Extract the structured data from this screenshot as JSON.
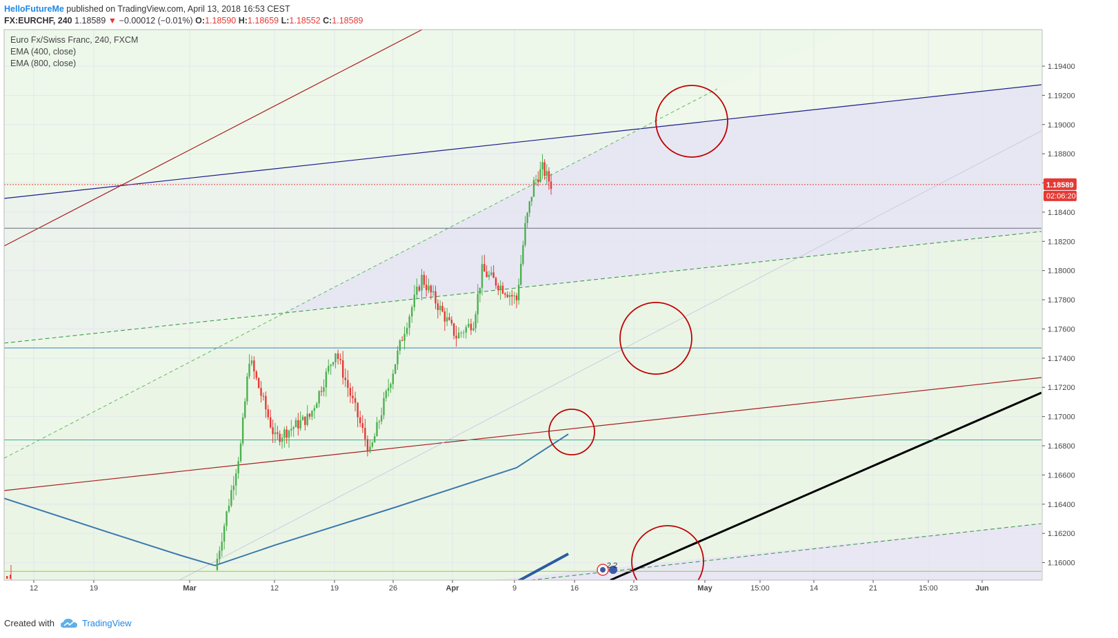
{
  "header": {
    "author": "HelloFutureMe",
    "published": "published on TradingView.com, April 13, 2018 16:53 CEST"
  },
  "symbol_line": {
    "symbol": "FX:EURCHF, 240",
    "last": "1.18589",
    "change": "−0.00012 (−0.01%)",
    "o_label": "O:",
    "o_value": "1.18590",
    "h_label": "H:",
    "h_value": "1.18659",
    "l_label": "L:",
    "l_value": "1.18552",
    "c_label": "C:",
    "c_value": "1.18589"
  },
  "legend": {
    "title": "Euro Fx/Swiss Franc, 240, FXCM",
    "ema400": "EMA (400, close)",
    "ema800": "EMA (800, close)"
  },
  "price_axis": {
    "ticks": [
      "1.19400",
      "1.19200",
      "1.19000",
      "1.18800",
      "1.18600",
      "1.18400",
      "1.18200",
      "1.18000",
      "1.17800",
      "1.17600",
      "1.17400",
      "1.17200",
      "1.17000",
      "1.16800",
      "1.16600",
      "1.16400",
      "1.16200",
      "1.16000"
    ],
    "current_price": "1.18589",
    "countdown": "02:06:20"
  },
  "time_axis": {
    "ticks": [
      "12",
      "19",
      "Mar",
      "12",
      "19",
      "26",
      "Apr",
      "9",
      "16",
      "23",
      "May",
      "15:00",
      "14",
      "21",
      "15:00",
      "Jun"
    ]
  },
  "events_marker": "2 2",
  "footer": {
    "created": "Created with",
    "brand": "TradingView"
  },
  "colors": {
    "up": "#4caf50",
    "down": "#e53935",
    "ema400": "#3a78ad",
    "ema800": "#2a5d9f",
    "zone_purple": "#e6e4f4",
    "zone_green": "#eff8ea",
    "navy": "#1a1a8c",
    "darkred": "#a61c1c"
  },
  "chart_data": {
    "type": "candlestick",
    "title": "Euro Fx/Swiss Franc, 240, FXCM",
    "symbol": "FX:EURCHF",
    "interval": "240",
    "ylim": [
      1.1588,
      1.1965
    ],
    "last_price": 1.18589,
    "close_path": [
      {
        "date": "Mar 5",
        "close": 1.1595
      },
      {
        "date": "Mar 8",
        "close": 1.168
      },
      {
        "date": "Mar 9",
        "close": 1.174
      },
      {
        "date": "Mar 12",
        "close": 1.1685
      },
      {
        "date": "Mar 16",
        "close": 1.17
      },
      {
        "date": "Mar 19",
        "close": 1.1745
      },
      {
        "date": "Mar 21",
        "close": 1.171
      },
      {
        "date": "Mar 23",
        "close": 1.1675
      },
      {
        "date": "Mar 27",
        "close": 1.176
      },
      {
        "date": "Mar 29",
        "close": 1.1795
      },
      {
        "date": "Apr 2",
        "close": 1.1755
      },
      {
        "date": "Apr 4",
        "close": 1.1765
      },
      {
        "date": "Apr 5",
        "close": 1.18
      },
      {
        "date": "Apr 9",
        "close": 1.178
      },
      {
        "date": "Apr 10",
        "close": 1.183
      },
      {
        "date": "Apr 11",
        "close": 1.186
      },
      {
        "date": "Apr 12",
        "close": 1.187
      },
      {
        "date": "Apr 13",
        "close": 1.18589
      }
    ],
    "series": [
      {
        "name": "EMA (400, close)",
        "points": [
          [
            "Feb 7",
            1.1647
          ],
          [
            "Feb 20",
            1.1622
          ],
          [
            "Mar 1",
            1.1605
          ],
          [
            "Mar 5",
            1.1598
          ],
          [
            "Mar 12",
            1.1612
          ],
          [
            "Mar 26",
            1.1638
          ],
          [
            "Apr 9",
            1.1665
          ],
          [
            "Apr 15",
            1.1688
          ]
        ]
      },
      {
        "name": "EMA (800, close)",
        "points": [
          [
            "Apr 5",
            1.1574
          ],
          [
            "Apr 15",
            1.1606
          ]
        ]
      }
    ],
    "horizontal_levels": [
      1.1829,
      1.1747,
      1.1684,
      1.1594
    ],
    "grid": true
  }
}
